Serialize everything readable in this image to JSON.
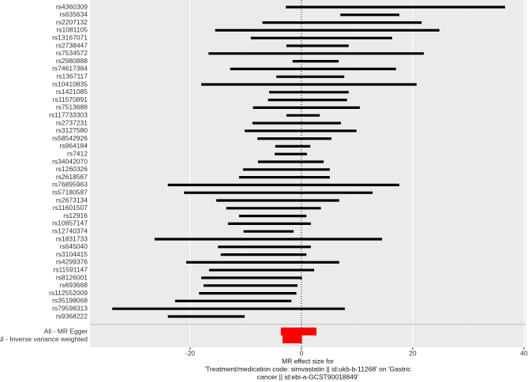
{
  "chart_data": {
    "type": "forest",
    "categories": [
      "rs4360309",
      "rs635634",
      "rs2207132",
      "rs1081105",
      "rs13167071",
      "rs2738447",
      "rs7534572",
      "rs2980888",
      "rs74617384",
      "rs1367117",
      "rs10410835",
      "rs1421085",
      "rs11570891",
      "rs7513688",
      "rs117733303",
      "rs2737231",
      "rs3127580",
      "rs58542926",
      "rs964184",
      "rs7412",
      "rs34042070",
      "rs1260326",
      "rs2618567",
      "rs76895963",
      "rs57180587",
      "rs2673134",
      "rs11601507",
      "rs12916",
      "rs10857147",
      "rs12740374",
      "rs1831733",
      "rs645040",
      "rs3104415",
      "rs4299376",
      "rs11591147",
      "rs8126001",
      "rs693668",
      "rs112552009",
      "rs35198068",
      "rs79598313",
      "rs9368222"
    ],
    "estimate": [
      16.9,
      12.3,
      7.3,
      4.7,
      3.6,
      2.9,
      2.6,
      2.6,
      2.1,
      1.6,
      1.4,
      1.4,
      1.1,
      0.9,
      0.3,
      -0.9,
      -0.2,
      -1.3,
      -1.6,
      -1.9,
      -1.9,
      -2.7,
      -3.0,
      -3.2,
      -4.2,
      -4.3,
      -5.0,
      -5.2,
      -5.7,
      -5.9,
      -6.0,
      -6.7,
      -6.8,
      -7.0,
      -7.2,
      -9.0,
      -9.2,
      -9.7,
      -12.3,
      -13.1,
      -17.1
    ],
    "lower": [
      -2.8,
      7.0,
      -7.0,
      -15.5,
      -9.1,
      -2.7,
      -16.7,
      -1.6,
      -12.8,
      -4.5,
      -18.0,
      -5.8,
      -6.0,
      -8.7,
      -2.7,
      -8.8,
      -10.2,
      -7.9,
      -4.7,
      -4.8,
      -7.8,
      -10.5,
      -11.2,
      -24.0,
      -21.1,
      -15.3,
      -13.5,
      -11.2,
      -13.2,
      -10.4,
      -26.4,
      -15.0,
      -14.5,
      -20.7,
      -16.6,
      -18.0,
      -17.6,
      -18.4,
      -22.7,
      -34.0,
      -24.0
    ],
    "upper": [
      36.6,
      17.6,
      21.6,
      24.8,
      16.3,
      8.5,
      22.0,
      6.7,
      17.0,
      7.7,
      20.7,
      8.5,
      8.2,
      10.5,
      3.3,
      7.1,
      9.9,
      5.4,
      1.6,
      1.0,
      4.0,
      5.1,
      5.1,
      17.6,
      12.8,
      6.8,
      3.5,
      0.9,
      1.7,
      -1.4,
      14.5,
      1.7,
      0.9,
      6.8,
      2.3,
      0.1,
      -0.7,
      -0.9,
      -1.8,
      7.8,
      -10.2
    ],
    "color": "#000000",
    "summary": {
      "categories": [
        "All - MR Egger",
        "All - Inverse variance weighted"
      ],
      "estimate": [
        -0.5,
        -1.6
      ],
      "lower": [
        -3.7,
        -3.4
      ],
      "upper": [
        2.7,
        0.1
      ],
      "color": "#ff0000"
    },
    "xlim": [
      -38,
      40.3
    ],
    "xticks": [
      -20,
      0,
      20,
      40
    ],
    "grid": true,
    "xlabel": [
      "MR effect size for",
      "'Treatment/medication code: simvastatin || id:ukb-b-11268' on 'Gastric",
      "cancer || id:ebi-a-GCST90018849'"
    ]
  }
}
